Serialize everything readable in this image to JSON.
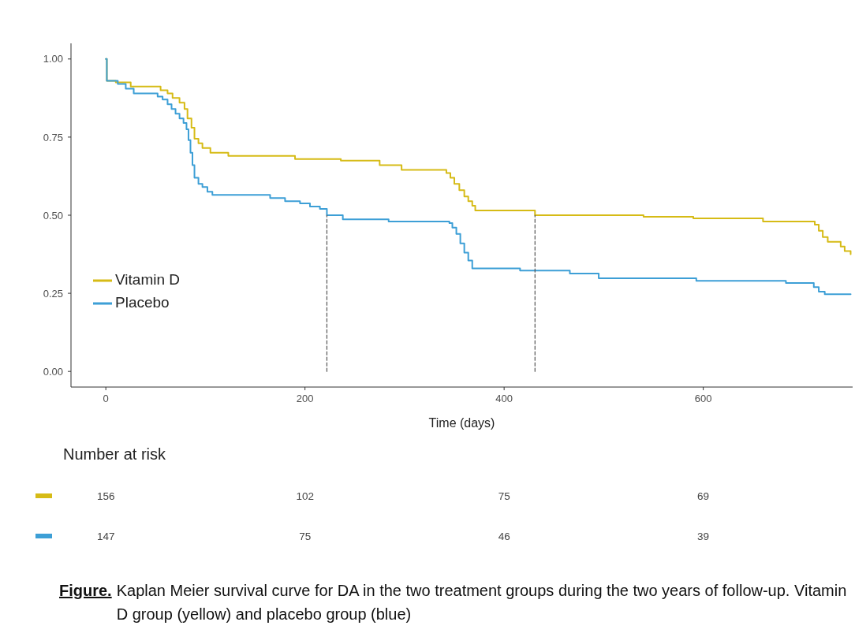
{
  "chart_data": [
    {
      "type": "step",
      "xlabel": "Time (days)",
      "xlim": [
        -35,
        750
      ],
      "ylim": [
        -0.05,
        1.05
      ],
      "xticks": [
        0,
        200,
        400,
        600
      ],
      "yticks": [
        {
          "value": 0,
          "label": "0.00"
        },
        {
          "value": 0.25,
          "label": "0.25"
        },
        {
          "value": 0.5,
          "label": "0.50"
        },
        {
          "value": 0.75,
          "label": "0.75"
        },
        {
          "value": 1,
          "label": "1.00"
        }
      ],
      "legend": "bottom left",
      "series": [
        {
          "name": "Vitamin D",
          "color": "#d6bb16",
          "x": [
            0,
            1,
            10,
            25,
            55,
            62,
            67,
            74,
            79,
            82,
            86,
            89,
            93,
            97,
            105,
            123,
            190,
            236,
            275,
            297,
            342,
            346,
            350,
            355,
            360,
            364,
            368,
            371,
            431,
            540,
            590,
            660,
            712,
            716,
            720,
            725,
            738,
            742,
            748
          ],
          "values": [
            1.0,
            0.93,
            0.925,
            0.912,
            0.9,
            0.89,
            0.875,
            0.86,
            0.84,
            0.81,
            0.78,
            0.745,
            0.73,
            0.715,
            0.7,
            0.69,
            0.68,
            0.675,
            0.66,
            0.645,
            0.635,
            0.62,
            0.6,
            0.58,
            0.56,
            0.545,
            0.53,
            0.515,
            0.5,
            0.495,
            0.49,
            0.48,
            0.47,
            0.45,
            0.43,
            0.415,
            0.4,
            0.385,
            0.375
          ]
        },
        {
          "name": "Placebo",
          "color": "#3d9fd6",
          "x": [
            0,
            1,
            12,
            20,
            28,
            52,
            57,
            62,
            66,
            70,
            74,
            78,
            81,
            83,
            85,
            87,
            89,
            93,
            97,
            102,
            107,
            165,
            180,
            195,
            205,
            215,
            222,
            238,
            284,
            345,
            348,
            352,
            356,
            360,
            364,
            368,
            416,
            466,
            495,
            593,
            683,
            711,
            716,
            722,
            748
          ],
          "values": [
            1.0,
            0.93,
            0.92,
            0.905,
            0.89,
            0.88,
            0.87,
            0.855,
            0.84,
            0.825,
            0.81,
            0.795,
            0.775,
            0.74,
            0.7,
            0.66,
            0.62,
            0.6,
            0.59,
            0.575,
            0.565,
            0.555,
            0.545,
            0.538,
            0.528,
            0.52,
            0.5,
            0.487,
            0.48,
            0.475,
            0.46,
            0.44,
            0.41,
            0.38,
            0.355,
            0.33,
            0.323,
            0.313,
            0.298,
            0.29,
            0.283,
            0.27,
            0.255,
            0.247,
            0.247
          ]
        },
        {
          "type": "line",
          "color": "#555555",
          "line_style": "dashed",
          "x": [
            222,
            222
          ],
          "values": [
            0,
            0.5
          ]
        },
        {
          "type": "line",
          "color": "#555555",
          "line_style": "dashed",
          "x": [
            431,
            431
          ],
          "values": [
            0,
            0.5
          ]
        }
      ]
    },
    {
      "type": "other",
      "title": "Number at risk",
      "annotations": [
        "156",
        "102",
        "75",
        "69",
        "147",
        "75",
        "46",
        "39"
      ]
    },
    {
      "type": "other",
      "annotations": [
        "Figure.",
        "Kaplan Meier survival curve for DA in the two treatment groups during the two years of follow-up. Vitamin D group (yellow) and placebo group (blue)"
      ]
    }
  ]
}
